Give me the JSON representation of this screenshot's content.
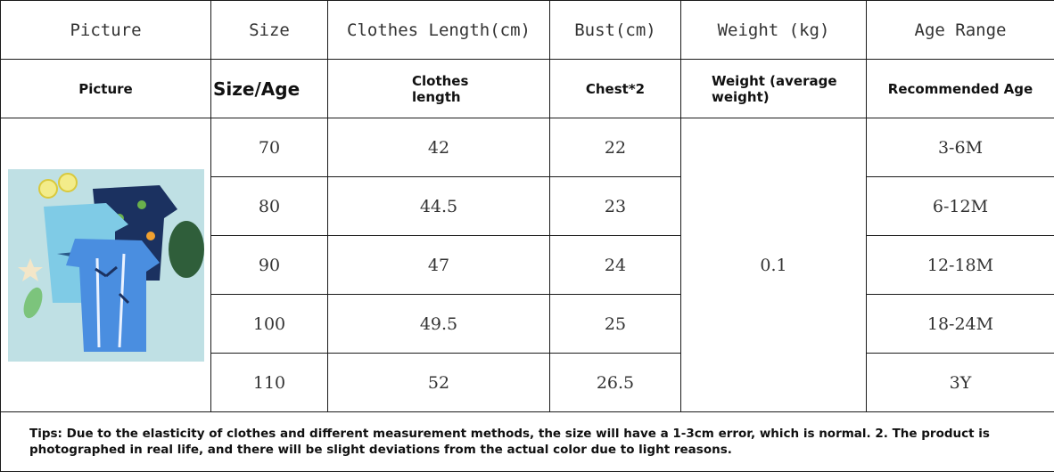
{
  "header_row_1": [
    "Picture",
    "Size",
    "Clothes Length(cm)",
    "Bust(cm)",
    "Weight (kg)",
    "Age Range"
  ],
  "header_row_2": {
    "picture": "Picture",
    "size": "Size/Age",
    "length": "Clothes length",
    "chest": "Chest*2",
    "weight": "Weight (average weight)",
    "age": "Recommended Age"
  },
  "rows": [
    {
      "size": "70",
      "length": "42",
      "bust": "22",
      "age": "3-6M"
    },
    {
      "size": "80",
      "length": "44.5",
      "bust": "23",
      "age": "6-12M"
    },
    {
      "size": "90",
      "length": "47",
      "bust": "24",
      "age": "12-18M"
    },
    {
      "size": "100",
      "length": "49.5",
      "bust": "25",
      "age": "18-24M"
    },
    {
      "size": "110",
      "length": "52",
      "bust": "26.5",
      "age": "3Y"
    }
  ],
  "weight_value": "0.1",
  "tips": "Tips: Due to the elasticity of clothes and different measurement methods, the size will have a 1-3cm error, which is normal. 2. The product is photographed in real life, and there will be slight deviations from the actual color due to light reasons."
}
